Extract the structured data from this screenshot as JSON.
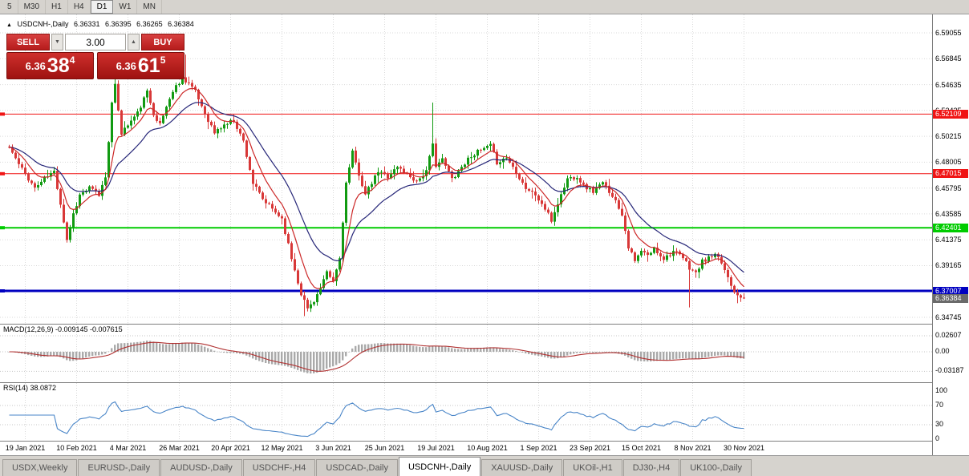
{
  "colors": {
    "bull": "#119a11",
    "bear": "#d83838",
    "ma_fast": "#cc2828",
    "ma_slow": "#262678",
    "grid": "#d9d9d9",
    "macd_signal": "#b03030",
    "macd_hist": "#aaaaaa",
    "rsi_line": "#4a86c8",
    "badge_current": "#6a6a6a",
    "chrome_bg": "#d6d3ce"
  },
  "icons": {
    "collapse": "▲",
    "vol_down": "▼",
    "vol_up": "▲"
  },
  "toolbar": {
    "timeframes": [
      "5",
      "M30",
      "H1",
      "H4",
      "D1",
      "W1",
      "MN"
    ],
    "active": "D1"
  },
  "chart_header": {
    "symbol": "USDCNH-,Daily",
    "open": "6.36331",
    "high": "6.36395",
    "low": "6.36265",
    "close": "6.36384"
  },
  "trade_panel": {
    "sell_label": "SELL",
    "buy_label": "BUY",
    "volume": "3.00",
    "sell_price": {
      "prefix": "6.36",
      "big": "38",
      "sup": "4"
    },
    "buy_price": {
      "prefix": "6.36",
      "big": "61",
      "sup": "5"
    }
  },
  "price_axis_labels": [
    "6.59055",
    "6.56845",
    "6.54635",
    "6.52425",
    "6.50215",
    "6.48005",
    "6.45795",
    "6.43585",
    "6.41375",
    "6.39165",
    "6.36955",
    "6.34745"
  ],
  "levels": [
    {
      "price": 6.52109,
      "label": "6.52109",
      "color": "#f01414",
      "width": 1
    },
    {
      "price": 6.47015,
      "label": "6.47015",
      "color": "#f01414",
      "width": 1
    },
    {
      "price": 6.42401,
      "label": "6.42401",
      "color": "#00cc00",
      "width": 2
    },
    {
      "price": 6.37007,
      "label": "6.37007",
      "color": "#0000c0",
      "width": 3
    }
  ],
  "current_price": {
    "value": 6.36384,
    "label": "6.36384"
  },
  "macd_panel": {
    "title": "MACD(12,26,9) -0.009145 -0.007615",
    "axis": [
      {
        "v": 0.02607,
        "label": "0.02607"
      },
      {
        "v": 0,
        "label": "0.00"
      },
      {
        "v": -0.03187,
        "label": "-0.03187"
      }
    ]
  },
  "rsi_panel": {
    "title": "RSI(14) 38.0872",
    "axis": [
      {
        "v": 100,
        "label": "100"
      },
      {
        "v": 70,
        "label": "70"
      },
      {
        "v": 30,
        "label": "30"
      },
      {
        "v": 0,
        "label": "0"
      }
    ],
    "levels": [
      70,
      30
    ]
  },
  "date_axis": [
    "19 Jan 2021",
    "10 Feb 2021",
    "4 Mar 2021",
    "26 Mar 2021",
    "20 Apr 2021",
    "12 May 2021",
    "3 Jun 2021",
    "25 Jun 2021",
    "19 Jul 2021",
    "10 Aug 2021",
    "1 Sep 2021",
    "23 Sep 2021",
    "15 Oct 2021",
    "8 Nov 2021",
    "30 Nov 2021"
  ],
  "tabs": [
    {
      "label": "USDX,Weekly",
      "active": false
    },
    {
      "label": "EURUSD-,Daily",
      "active": false
    },
    {
      "label": "AUDUSD-,Daily",
      "active": false
    },
    {
      "label": "USDCHF-,H4",
      "active": false
    },
    {
      "label": "USDCAD-,Daily",
      "active": false
    },
    {
      "label": "USDCNH-,Daily",
      "active": true
    },
    {
      "label": "XAUUSD-,Daily",
      "active": false
    },
    {
      "label": "UKOil-,H1",
      "active": false
    },
    {
      "label": "DJ30-,H4",
      "active": false
    },
    {
      "label": "UK100-,Daily",
      "active": false
    }
  ],
  "chart_data": {
    "type": "candlestick",
    "symbol": "USDCNH",
    "timeframe": "Daily",
    "title": "USDCNH-,Daily",
    "ohlc_current": {
      "open": 6.36331,
      "high": 6.36395,
      "low": 6.36265,
      "close": 6.36384
    },
    "n_candles": 230,
    "seed": 11,
    "noise": 0.004,
    "wick": 0.006,
    "price_top": 6.6063,
    "price_bottom": 6.342,
    "gridline_prices": [
      6.59055,
      6.56845,
      6.54635,
      6.52425,
      6.50215,
      6.48005,
      6.45795,
      6.43585,
      6.41375,
      6.39165,
      6.36955,
      6.34745
    ],
    "date_tick_first": 5,
    "date_tick_step": 16,
    "close_anchors": [
      [
        0,
        6.493
      ],
      [
        3,
        6.478
      ],
      [
        5,
        6.47
      ],
      [
        8,
        6.458
      ],
      [
        11,
        6.466
      ],
      [
        14,
        6.472
      ],
      [
        16,
        6.445
      ],
      [
        18,
        6.414
      ],
      [
        20,
        6.436
      ],
      [
        22,
        6.452
      ],
      [
        25,
        6.458
      ],
      [
        28,
        6.452
      ],
      [
        30,
        6.468
      ],
      [
        32,
        6.53
      ],
      [
        33,
        6.545
      ],
      [
        35,
        6.505
      ],
      [
        37,
        6.512
      ],
      [
        40,
        6.522
      ],
      [
        43,
        6.54
      ],
      [
        45,
        6.522
      ],
      [
        47,
        6.512
      ],
      [
        50,
        6.535
      ],
      [
        52,
        6.545
      ],
      [
        54,
        6.552
      ],
      [
        56,
        6.548
      ],
      [
        58,
        6.54
      ],
      [
        61,
        6.522
      ],
      [
        64,
        6.505
      ],
      [
        67,
        6.512
      ],
      [
        70,
        6.516
      ],
      [
        73,
        6.498
      ],
      [
        76,
        6.462
      ],
      [
        79,
        6.448
      ],
      [
        82,
        6.44
      ],
      [
        85,
        6.432
      ],
      [
        88,
        6.398
      ],
      [
        91,
        6.368
      ],
      [
        93,
        6.355
      ],
      [
        95,
        6.362
      ],
      [
        97,
        6.372
      ],
      [
        99,
        6.385
      ],
      [
        101,
        6.378
      ],
      [
        103,
        6.398
      ],
      [
        105,
        6.462
      ],
      [
        107,
        6.488
      ],
      [
        109,
        6.47
      ],
      [
        111,
        6.452
      ],
      [
        113,
        6.462
      ],
      [
        115,
        6.472
      ],
      [
        118,
        6.468
      ],
      [
        121,
        6.476
      ],
      [
        124,
        6.47
      ],
      [
        127,
        6.464
      ],
      [
        130,
        6.472
      ],
      [
        132,
        6.495
      ],
      [
        133,
        6.478
      ],
      [
        135,
        6.482
      ],
      [
        138,
        6.466
      ],
      [
        141,
        6.476
      ],
      [
        144,
        6.486
      ],
      [
        147,
        6.49
      ],
      [
        150,
        6.494
      ],
      [
        152,
        6.48
      ],
      [
        155,
        6.484
      ],
      [
        158,
        6.472
      ],
      [
        161,
        6.458
      ],
      [
        164,
        6.452
      ],
      [
        167,
        6.44
      ],
      [
        169,
        6.43
      ],
      [
        171,
        6.445
      ],
      [
        174,
        6.466
      ],
      [
        177,
        6.468
      ],
      [
        179,
        6.46
      ],
      [
        182,
        6.455
      ],
      [
        185,
        6.462
      ],
      [
        188,
        6.452
      ],
      [
        191,
        6.436
      ],
      [
        193,
        6.408
      ],
      [
        195,
        6.395
      ],
      [
        197,
        6.404
      ],
      [
        199,
        6.4
      ],
      [
        201,
        6.406
      ],
      [
        204,
        6.398
      ],
      [
        207,
        6.404
      ],
      [
        210,
        6.398
      ],
      [
        212,
        6.39
      ],
      [
        214,
        6.385
      ],
      [
        216,
        6.395
      ],
      [
        218,
        6.398
      ],
      [
        220,
        6.4
      ],
      [
        222,
        6.394
      ],
      [
        224,
        6.382
      ],
      [
        226,
        6.37
      ],
      [
        228,
        6.366
      ],
      [
        229,
        6.36384
      ]
    ],
    "spikes": [
      [
        33,
        "h",
        6.568
      ],
      [
        55,
        "h",
        6.572
      ],
      [
        92,
        "l",
        6.3485
      ],
      [
        132,
        "h",
        6.531
      ],
      [
        212,
        "l",
        6.356
      ],
      [
        227,
        "l",
        6.3595
      ]
    ],
    "ma_fast_period": 8,
    "ma_slow_period": 21,
    "macd": {
      "fast": 12,
      "slow": 26,
      "signal": 9,
      "v_top": 0.0443,
      "v_bottom": -0.0509
    },
    "rsi": {
      "period": 14,
      "current": 38.0872
    }
  }
}
